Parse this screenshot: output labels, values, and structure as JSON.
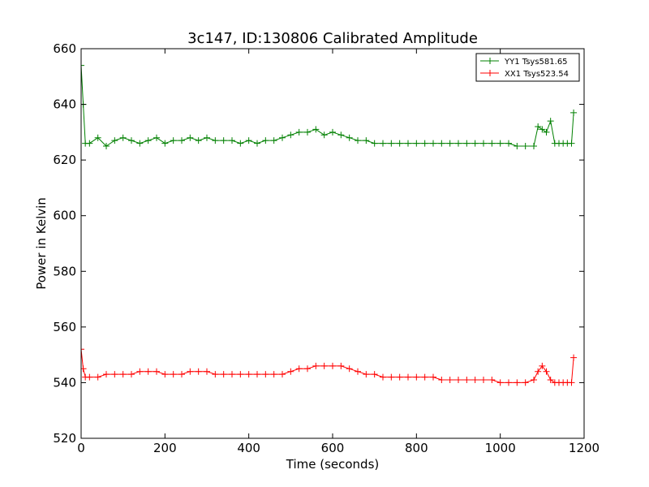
{
  "chart_data": {
    "type": "line",
    "title": "3c147, ID:130806 Calibrated Amplitude",
    "xlabel": "Time (seconds)",
    "ylabel": "Power in Kelvin",
    "xlim": [
      0,
      1200
    ],
    "ylim": [
      520,
      660
    ],
    "xticks": [
      "0",
      "200",
      "400",
      "600",
      "800",
      "1000",
      "1200"
    ],
    "yticks": [
      "520",
      "540",
      "560",
      "580",
      "600",
      "620",
      "640",
      "660"
    ],
    "grid": false,
    "legend_position": "top-right",
    "marker": "plus",
    "series": [
      {
        "name": "YY1 Tsys581.65",
        "color": "#008000",
        "x": [
          0,
          5,
          10,
          20,
          40,
          60,
          80,
          100,
          120,
          140,
          160,
          180,
          200,
          220,
          240,
          260,
          280,
          300,
          320,
          340,
          360,
          380,
          400,
          420,
          440,
          460,
          480,
          500,
          520,
          540,
          560,
          580,
          600,
          620,
          640,
          660,
          680,
          700,
          720,
          740,
          760,
          780,
          800,
          820,
          840,
          860,
          880,
          900,
          920,
          940,
          960,
          980,
          1000,
          1020,
          1040,
          1060,
          1080,
          1090,
          1100,
          1110,
          1120,
          1130,
          1140,
          1150,
          1160,
          1170,
          1175
        ],
        "y": [
          654,
          640,
          626,
          626,
          628,
          625,
          627,
          628,
          627,
          626,
          627,
          628,
          626,
          627,
          627,
          628,
          627,
          628,
          627,
          627,
          627,
          626,
          627,
          626,
          627,
          627,
          628,
          629,
          630,
          630,
          631,
          629,
          630,
          629,
          628,
          627,
          627,
          626,
          626,
          626,
          626,
          626,
          626,
          626,
          626,
          626,
          626,
          626,
          626,
          626,
          626,
          626,
          626,
          626,
          625,
          625,
          625,
          632,
          631,
          630,
          634,
          626,
          626,
          626,
          626,
          626,
          637
        ]
      },
      {
        "name": "XX1 Tsys523.54",
        "color": "#ff0000",
        "x": [
          0,
          5,
          10,
          20,
          40,
          60,
          80,
          100,
          120,
          140,
          160,
          180,
          200,
          220,
          240,
          260,
          280,
          300,
          320,
          340,
          360,
          380,
          400,
          420,
          440,
          460,
          480,
          500,
          520,
          540,
          560,
          580,
          600,
          620,
          640,
          660,
          680,
          700,
          720,
          740,
          760,
          780,
          800,
          820,
          840,
          860,
          880,
          900,
          920,
          940,
          960,
          980,
          1000,
          1020,
          1040,
          1060,
          1080,
          1090,
          1100,
          1110,
          1120,
          1130,
          1140,
          1150,
          1160,
          1170,
          1175
        ],
        "y": [
          552,
          545,
          542,
          542,
          542,
          543,
          543,
          543,
          543,
          544,
          544,
          544,
          543,
          543,
          543,
          544,
          544,
          544,
          543,
          543,
          543,
          543,
          543,
          543,
          543,
          543,
          543,
          544,
          545,
          545,
          546,
          546,
          546,
          546,
          545,
          544,
          543,
          543,
          542,
          542,
          542,
          542,
          542,
          542,
          542,
          541,
          541,
          541,
          541,
          541,
          541,
          541,
          540,
          540,
          540,
          540,
          541,
          544,
          546,
          544,
          541,
          540,
          540,
          540,
          540,
          540,
          549
        ]
      }
    ]
  }
}
